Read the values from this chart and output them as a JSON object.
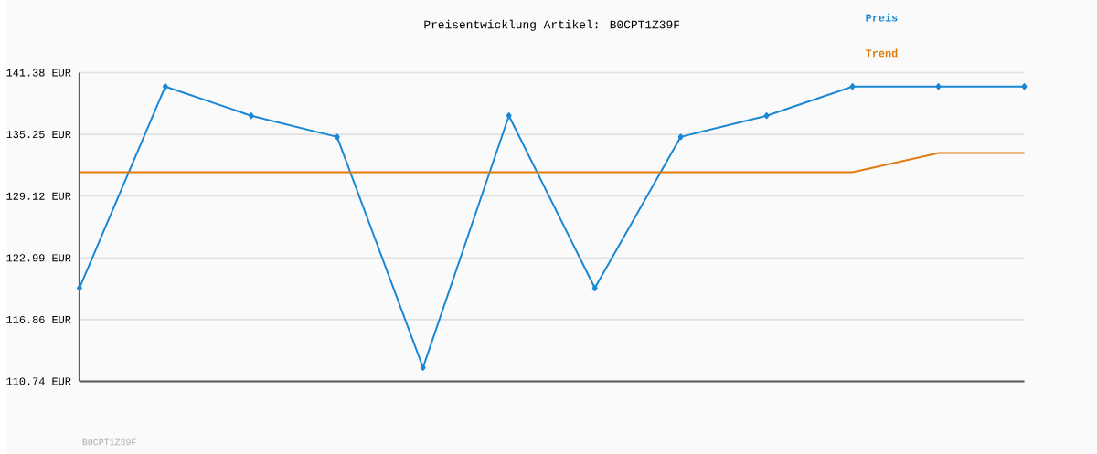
{
  "chart_data": {
    "type": "line",
    "title": "Preisentwicklung Artikel: B0CPT1Z39F",
    "categories": [
      null,
      null,
      null,
      null,
      null,
      null,
      null,
      null,
      null,
      null,
      null,
      null
    ],
    "series": [
      {
        "name": "Preis",
        "color": "#1a87d4",
        "marker": "diamond",
        "values": [
          120.0,
          140.0,
          137.1,
          135.0,
          112.1,
          137.1,
          120.0,
          135.0,
          137.1,
          140.0,
          140.0,
          140.0
        ]
      },
      {
        "name": "Trend",
        "color": "#e07b0f",
        "marker": "none",
        "values": [
          131.5,
          131.5,
          131.5,
          131.5,
          131.5,
          131.5,
          131.5,
          131.5,
          131.5,
          131.5,
          133.4,
          133.4
        ]
      }
    ],
    "ylim": [
      110.74,
      141.38
    ],
    "yticks": [
      {
        "value": 110.74,
        "label": "110.74 EUR"
      },
      {
        "value": 116.86,
        "label": "116.86 EUR"
      },
      {
        "value": 122.99,
        "label": "122.99 EUR"
      },
      {
        "value": 129.12,
        "label": "129.12 EUR"
      },
      {
        "value": 135.25,
        "label": "135.25 EUR"
      },
      {
        "value": 141.38,
        "label": "141.38 EUR"
      }
    ],
    "grid": "y",
    "legend": "top right",
    "annotations": [
      "B0CPT1Z39F"
    ]
  }
}
